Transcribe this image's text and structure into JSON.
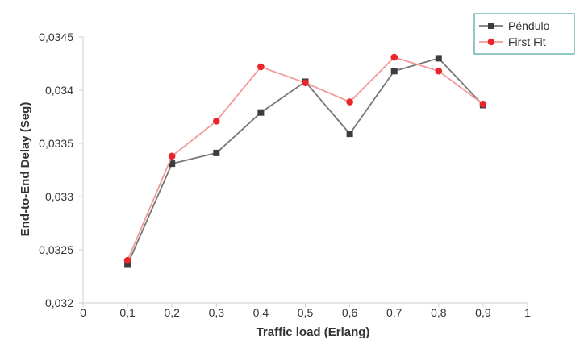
{
  "chart_data": {
    "type": "line",
    "title": "",
    "xlabel": "Traffic load (Erlang)",
    "ylabel": "End-to-End Delay (Seg)",
    "xlim": [
      0,
      1
    ],
    "ylim": [
      0.032,
      0.0345
    ],
    "x_ticks": [
      0,
      0.1,
      0.2,
      0.3,
      0.4,
      0.5,
      0.6,
      0.7,
      0.8,
      0.9,
      1
    ],
    "x_tick_labels": [
      "0",
      "0,1",
      "0,2",
      "0,3",
      "0,4",
      "0,5",
      "0,6",
      "0,7",
      "0,8",
      "0,9",
      "1"
    ],
    "y_ticks": [
      0.032,
      0.0325,
      0.033,
      0.0335,
      0.034,
      0.0345
    ],
    "y_tick_labels": [
      "0,032",
      "0,0325",
      "0,033",
      "0,0335",
      "0,034",
      "0,0345"
    ],
    "grid": false,
    "legend_position": "top-right",
    "series": [
      {
        "name": "Péndulo",
        "color": "#777777",
        "marker": "square",
        "marker_color": "#3d3d3d",
        "x": [
          0.1,
          0.2,
          0.3,
          0.4,
          0.5,
          0.6,
          0.7,
          0.8,
          0.9
        ],
        "values": [
          0.03236,
          0.03331,
          0.03341,
          0.03379,
          0.03408,
          0.03359,
          0.03418,
          0.0343,
          0.03386
        ]
      },
      {
        "name": "First Fit",
        "color": "#f29a9a",
        "marker": "circle",
        "marker_color": "#e8262c",
        "x": [
          0.1,
          0.2,
          0.3,
          0.4,
          0.5,
          0.6,
          0.7,
          0.8,
          0.9
        ],
        "values": [
          0.0324,
          0.03338,
          0.03371,
          0.03422,
          0.03407,
          0.03389,
          0.03431,
          0.03418,
          0.03387
        ]
      }
    ]
  }
}
